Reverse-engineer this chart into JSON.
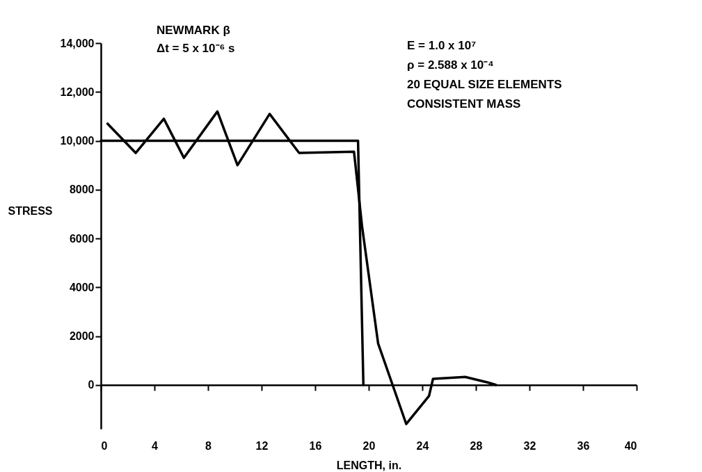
{
  "chart_data": {
    "type": "line",
    "xlabel": "LENGTH, in.",
    "ylabel": "STRESS",
    "annotations": [
      "NEWMARK β",
      "Δt = 5 x 10⁻⁶ s",
      "E = 1.0 x 10⁷",
      "ρ = 2.588 x 10⁻⁴",
      "20 EQUAL SIZE ELEMENTS",
      "CONSISTENT MASS"
    ],
    "series": [
      {
        "color": "#000000",
        "x": [
          0,
          19.2,
          19.6
        ],
        "values": [
          10000,
          10000,
          0
        ]
      },
      {
        "color": "#000000",
        "x": [
          0.5,
          2.6,
          4.7,
          6.2,
          8.7,
          10.2,
          12.6,
          14.8,
          18.9,
          19.5,
          20.7,
          22.8,
          24.5,
          24.8,
          27.2,
          28.9,
          29.5
        ],
        "values": [
          10700,
          9500,
          10900,
          9300,
          11200,
          9000,
          11100,
          9500,
          9550,
          6500,
          1700,
          -1600,
          -450,
          250,
          330,
          100,
          0
        ]
      }
    ],
    "xlim": [
      0,
      40
    ],
    "xticks": [
      0,
      4,
      8,
      12,
      16,
      20,
      24,
      28,
      32,
      36,
      40
    ],
    "ylim": [
      -1800,
      14000
    ],
    "yticks": [
      0,
      2000,
      4000,
      6000,
      8000,
      {
        "value": 10000,
        "label": "10,000"
      },
      {
        "value": 12000,
        "label": "12,000"
      },
      {
        "value": 14000,
        "label": "14,000"
      }
    ],
    "marker": "none",
    "line_style": "solid"
  }
}
